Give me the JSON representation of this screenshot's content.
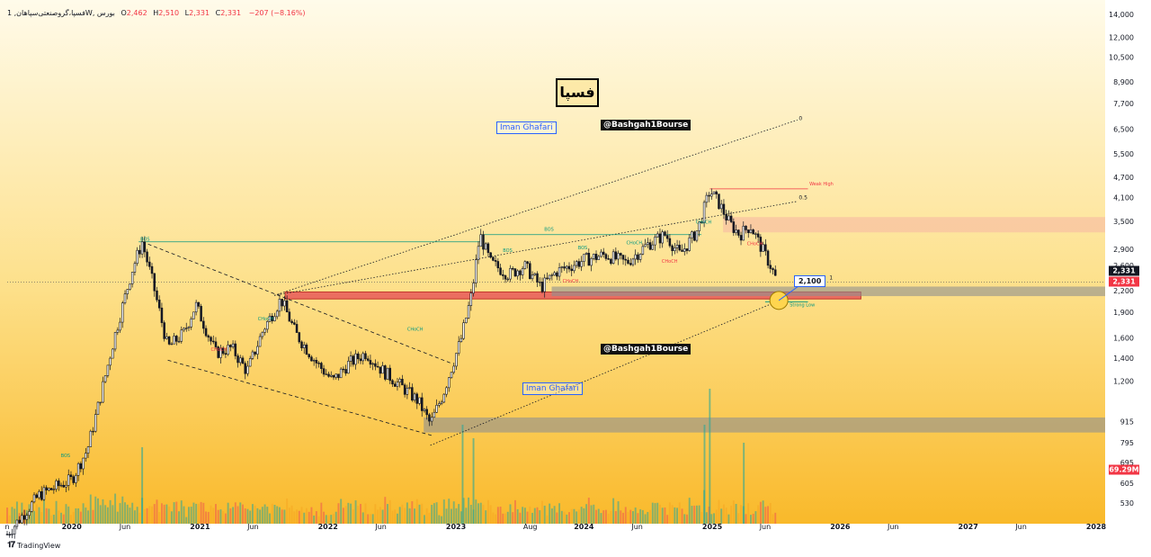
{
  "header": {
    "symbol_text": "فسپا،گروصنعتی‌سپاهان, 1W, بورس",
    "o_label": "O",
    "o_value": "2,462",
    "h_label": "H",
    "h_value": "2,510",
    "l_label": "L",
    "l_value": "2,331",
    "c_label": "C",
    "c_value": "2,331",
    "change": "−207 (−8.16%)"
  },
  "title_box": "فسپا",
  "watermarks": {
    "iman_1": "Iman Ghafari",
    "iman_2": "Iman Ghafari",
    "channel_1": "@Bashgah1Bourse",
    "channel_2": "@Bashgah1Bourse"
  },
  "badges": {
    "last_price_1": "2,331",
    "last_price_2": "2,331",
    "volume": "69.29M",
    "callout": "2,100"
  },
  "colors": {
    "bg_top": "#fffbe8",
    "bg_bottom": "#f9bb2e",
    "up": "#131722",
    "down": "#131722",
    "vol_up": "#26a69a",
    "vol_down": "#ef5350",
    "vol_other": "#f5a623",
    "red_zone": "#e85a5a",
    "gray_zone": "#8f8f8f",
    "pink_zone": "#f7b9a3",
    "bos_green": "#089981",
    "choch_red": "#f23645",
    "accent_blue": "#2962ff"
  },
  "footer": {
    "brand": "TradingView"
  },
  "chart_data": {
    "type": "candlestick",
    "title": "",
    "interval": "1W",
    "y_scale": "log",
    "y_ticks": [
      530,
      605,
      695,
      795,
      915,
      1200,
      1400,
      1600,
      1900,
      2200,
      2600,
      2900,
      3500,
      4100,
      4700,
      5500,
      6500,
      7700,
      8900,
      10500,
      12000,
      14000
    ],
    "y_tick_labels": [
      "530",
      "605",
      "695",
      "795",
      "915",
      "1,200",
      "1,400",
      "1,600",
      "1,900",
      "2,200",
      "2,600",
      "2,900",
      "3,500",
      "4,100",
      "4,700",
      "5,500",
      "6,500",
      "7,700",
      "8,900",
      "10,500",
      "12,000",
      "14,000"
    ],
    "x_tick_labels": [
      "n",
      "2020",
      "Jun",
      "2021",
      "Jun",
      "2022",
      "Jun",
      "2023",
      "Aug",
      "2024",
      "Jun",
      "2025",
      "Jun",
      "2026",
      "Jun",
      "2027",
      "Jun",
      "2028"
    ],
    "x_tick_dates": [
      "2019-07-01",
      "2020-01-01",
      "2020-06-01",
      "2021-01-01",
      "2021-06-01",
      "2022-01-01",
      "2022-06-01",
      "2023-01-01",
      "2023-08-01",
      "2024-01-01",
      "2024-06-01",
      "2025-01-01",
      "2025-06-01",
      "2026-01-01",
      "2026-06-01",
      "2027-01-01",
      "2027-06-01",
      "2028-01-01"
    ],
    "price_path": [
      [
        "2019-07-01",
        430
      ],
      [
        "2019-10-01",
        560
      ],
      [
        "2020-01-01",
        620
      ],
      [
        "2020-02-15",
        760
      ],
      [
        "2020-03-20",
        1050
      ],
      [
        "2020-05-01",
        1600
      ],
      [
        "2020-06-20",
        2500
      ],
      [
        "2020-07-20",
        3050
      ],
      [
        "2020-08-20",
        2300
      ],
      [
        "2020-10-01",
        1500
      ],
      [
        "2020-11-15",
        1650
      ],
      [
        "2020-12-20",
        2000
      ],
      [
        "2021-02-15",
        1450
      ],
      [
        "2021-04-01",
        1500
      ],
      [
        "2021-05-15",
        1280
      ],
      [
        "2021-07-01",
        1700
      ],
      [
        "2021-08-20",
        2080
      ],
      [
        "2021-10-01",
        1650
      ],
      [
        "2021-12-01",
        1350
      ],
      [
        "2022-01-15",
        1200
      ],
      [
        "2022-03-01",
        1350
      ],
      [
        "2022-04-20",
        1450
      ],
      [
        "2022-06-01",
        1300
      ],
      [
        "2022-07-20",
        1180
      ],
      [
        "2022-09-15",
        1050
      ],
      [
        "2022-10-20",
        900
      ],
      [
        "2022-11-25",
        1100
      ],
      [
        "2022-12-20",
        1320
      ],
      [
        "2023-01-15",
        1580
      ],
      [
        "2023-02-15",
        2150
      ],
      [
        "2023-03-10",
        3200
      ],
      [
        "2023-04-10",
        2650
      ],
      [
        "2023-06-01",
        2450
      ],
      [
        "2023-07-15",
        2600
      ],
      [
        "2023-09-01",
        2250
      ],
      [
        "2023-10-15",
        2500
      ],
      [
        "2024-01-01",
        2700
      ],
      [
        "2024-03-01",
        2800
      ],
      [
        "2024-05-01",
        2650
      ],
      [
        "2024-07-01",
        3000
      ],
      [
        "2024-08-20",
        3200
      ],
      [
        "2024-10-01",
        2800
      ],
      [
        "2024-11-20",
        3300
      ],
      [
        "2024-12-25",
        4300
      ],
      [
        "2025-01-20",
        3950
      ],
      [
        "2025-02-20",
        3450
      ],
      [
        "2025-03-20",
        3200
      ],
      [
        "2025-04-20",
        3400
      ],
      [
        "2025-05-20",
        2950
      ],
      [
        "2025-06-15",
        2620
      ],
      [
        "2025-07-05",
        2331
      ]
    ],
    "zones": [
      {
        "name": "supply",
        "from": "2025-02-01",
        "to": "2028-01-31",
        "low": 3250,
        "high": 3600,
        "color": "pink"
      },
      {
        "name": "demand-red",
        "from": "2021-09-01",
        "to": "2026-03-01",
        "low": 2080,
        "high": 2180,
        "color": "red"
      },
      {
        "name": "demand-gray",
        "from": "2023-10-01",
        "to": "2028-01-31",
        "low": 2120,
        "high": 2260,
        "color": "gray"
      },
      {
        "name": "demand-low",
        "from": "2022-10-01",
        "to": "2028-01-31",
        "low": 850,
        "high": 940,
        "color": "gray"
      }
    ],
    "levels": [
      {
        "label": "BOS",
        "from": "2020-07-10",
        "to": "2023-03-10",
        "price": 3050
      },
      {
        "label": "BOS",
        "from": "2023-03-15",
        "to": "2024-12-01",
        "price": 3200
      },
      {
        "label": "Weak High",
        "from": "2024-12-25",
        "to": "2025-10-01",
        "price": 4350
      },
      {
        "label": "Strong Low",
        "from": "2025-06-01",
        "to": "2025-10-01",
        "price": 2040
      }
    ],
    "annotations": [
      "BOS",
      "BOS",
      "BOS",
      "BOS",
      "BOS",
      "CHoCH",
      "CHoCH",
      "CHoCH",
      "CHoCH",
      "CHoCH",
      "CHoCH",
      "CHoCH",
      "CHoCH",
      "0",
      "0.5",
      "1",
      "Weak High",
      "Strong Low"
    ],
    "volume_last_label": "69.29M"
  }
}
